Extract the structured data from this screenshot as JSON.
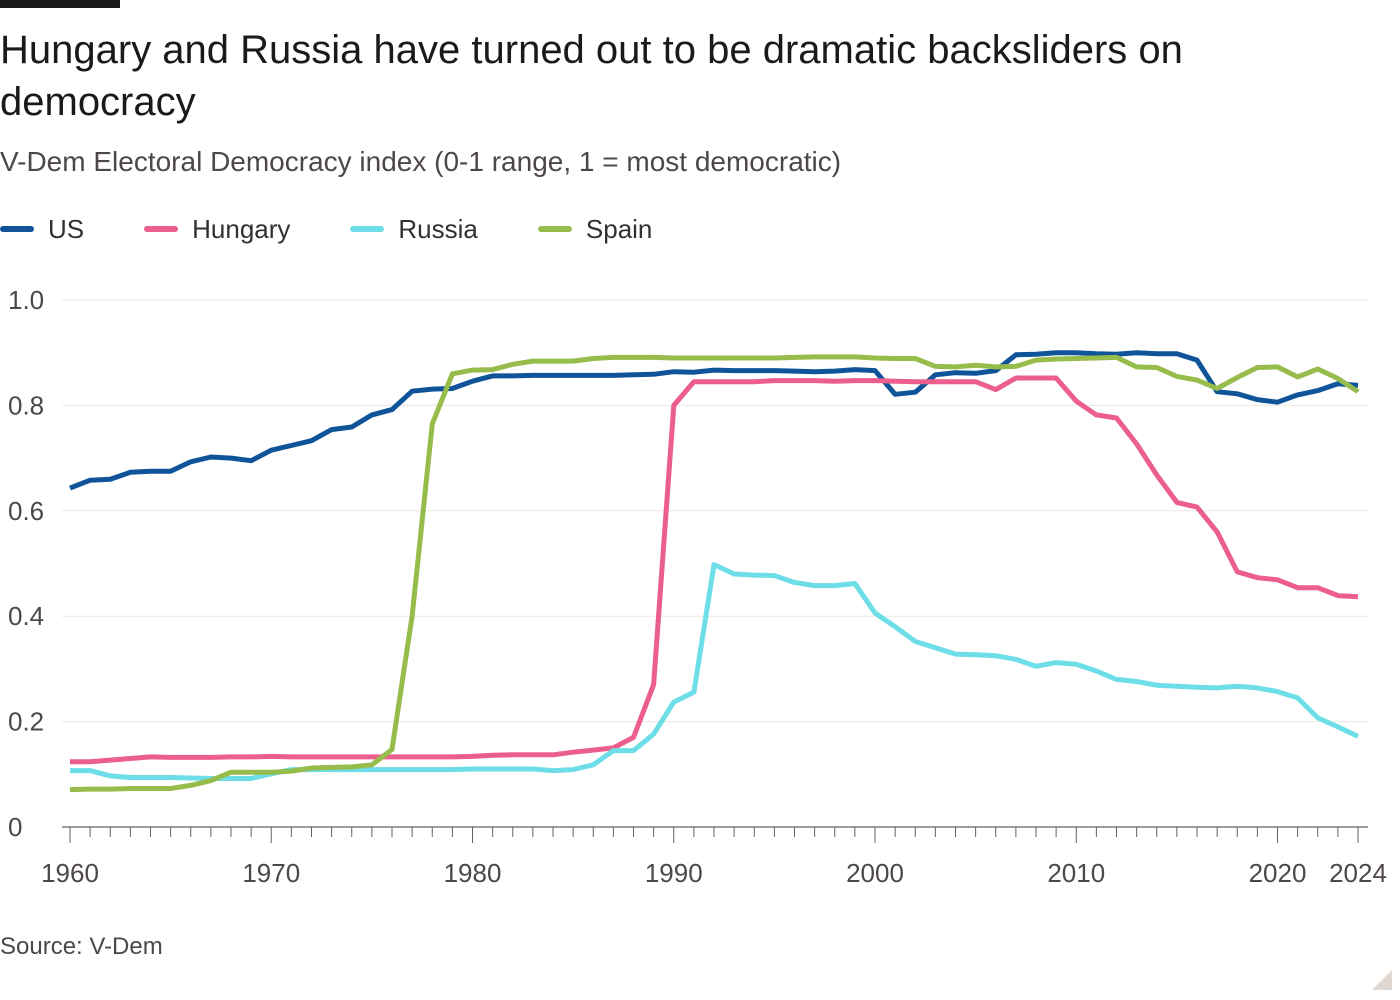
{
  "chart_data": {
    "type": "line",
    "title": "Hungary and Russia have turned out to be dramatic backsliders on democracy",
    "subtitle": "V-Dem Electoral Democracy index (0-1 range, 1 = most democratic)",
    "source": "Source: V-Dem",
    "xlabel": "",
    "ylabel": "",
    "x_start": 1960,
    "x_end": 2024,
    "xlim": [
      1960,
      2024
    ],
    "ylim": [
      0,
      1
    ],
    "x_ticks": [
      {
        "value": 1960,
        "label": "1960"
      },
      {
        "value": 1970,
        "label": "1970"
      },
      {
        "value": 1980,
        "label": "1980"
      },
      {
        "value": 1990,
        "label": "1990"
      },
      {
        "value": 2000,
        "label": "2000"
      },
      {
        "value": 2010,
        "label": "2010"
      },
      {
        "value": 2020,
        "label": "2020"
      },
      {
        "value": 2024,
        "label": "2024"
      }
    ],
    "y_ticks": [
      {
        "value": 0,
        "label": "0"
      },
      {
        "value": 0.2,
        "label": "0.2"
      },
      {
        "value": 0.4,
        "label": "0.4"
      },
      {
        "value": 0.6,
        "label": "0.6"
      },
      {
        "value": 0.8,
        "label": "0.8"
      },
      {
        "value": 1.0,
        "label": "1.0"
      }
    ],
    "legend_position": "top-left",
    "series": [
      {
        "name": "US",
        "color": "#0f5499",
        "values": [
          0.643,
          0.658,
          0.66,
          0.673,
          0.675,
          0.675,
          0.693,
          0.702,
          0.7,
          0.695,
          0.715,
          0.724,
          0.733,
          0.754,
          0.759,
          0.782,
          0.792,
          0.827,
          0.831,
          0.832,
          0.846,
          0.856,
          0.856,
          0.857,
          0.857,
          0.857,
          0.857,
          0.857,
          0.858,
          0.859,
          0.864,
          0.863,
          0.867,
          0.866,
          0.866,
          0.866,
          0.865,
          0.864,
          0.865,
          0.868,
          0.866,
          0.821,
          0.825,
          0.858,
          0.862,
          0.861,
          0.866,
          0.896,
          0.897,
          0.9,
          0.9,
          0.898,
          0.897,
          0.9,
          0.898,
          0.898,
          0.886,
          0.826,
          0.822,
          0.811,
          0.806,
          0.82,
          0.828,
          0.841,
          0.838
        ]
      },
      {
        "name": "Hungary",
        "color": "#eb5e8d",
        "values": [
          0.124,
          0.124,
          0.127,
          0.13,
          0.133,
          0.132,
          0.132,
          0.132,
          0.133,
          0.133,
          0.134,
          0.133,
          0.133,
          0.133,
          0.133,
          0.133,
          0.133,
          0.133,
          0.133,
          0.133,
          0.134,
          0.136,
          0.137,
          0.137,
          0.137,
          0.142,
          0.146,
          0.15,
          0.17,
          0.27,
          0.8,
          0.845,
          0.845,
          0.845,
          0.845,
          0.847,
          0.847,
          0.847,
          0.846,
          0.847,
          0.847,
          0.846,
          0.845,
          0.845,
          0.845,
          0.845,
          0.83,
          0.852,
          0.852,
          0.852,
          0.808,
          0.782,
          0.776,
          0.727,
          0.668,
          0.616,
          0.607,
          0.56,
          0.484,
          0.473,
          0.469,
          0.454,
          0.454,
          0.439,
          0.437
        ]
      },
      {
        "name": "Russia",
        "color": "#6ddee8",
        "values": [
          0.107,
          0.107,
          0.097,
          0.094,
          0.094,
          0.094,
          0.093,
          0.092,
          0.092,
          0.092,
          0.101,
          0.109,
          0.109,
          0.109,
          0.109,
          0.109,
          0.109,
          0.109,
          0.109,
          0.109,
          0.11,
          0.11,
          0.11,
          0.11,
          0.107,
          0.109,
          0.118,
          0.145,
          0.145,
          0.176,
          0.237,
          0.256,
          0.498,
          0.48,
          0.478,
          0.477,
          0.464,
          0.458,
          0.458,
          0.462,
          0.406,
          0.38,
          0.352,
          0.34,
          0.328,
          0.327,
          0.325,
          0.318,
          0.305,
          0.312,
          0.309,
          0.296,
          0.28,
          0.276,
          0.269,
          0.267,
          0.265,
          0.264,
          0.267,
          0.264,
          0.257,
          0.245,
          0.207,
          0.19,
          0.172
        ]
      },
      {
        "name": "Spain",
        "color": "#96bc4c",
        "values": [
          0.071,
          0.072,
          0.072,
          0.073,
          0.073,
          0.073,
          0.079,
          0.088,
          0.104,
          0.104,
          0.104,
          0.106,
          0.112,
          0.113,
          0.114,
          0.118,
          0.147,
          0.4,
          0.765,
          0.86,
          0.867,
          0.868,
          0.878,
          0.884,
          0.884,
          0.884,
          0.889,
          0.891,
          0.891,
          0.891,
          0.89,
          0.89,
          0.89,
          0.89,
          0.89,
          0.89,
          0.891,
          0.892,
          0.892,
          0.892,
          0.89,
          0.889,
          0.889,
          0.874,
          0.873,
          0.876,
          0.873,
          0.874,
          0.886,
          0.888,
          0.889,
          0.89,
          0.891,
          0.873,
          0.872,
          0.855,
          0.848,
          0.832,
          0.853,
          0.872,
          0.873,
          0.854,
          0.869,
          0.851,
          0.826
        ]
      }
    ]
  }
}
